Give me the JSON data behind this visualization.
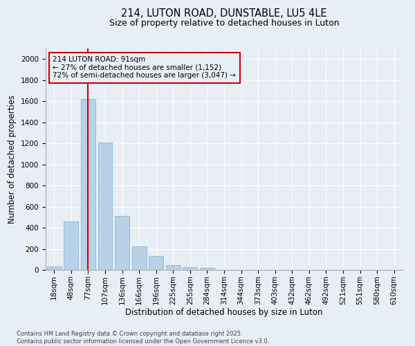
{
  "title1": "214, LUTON ROAD, DUNSTABLE, LU5 4LE",
  "title2": "Size of property relative to detached houses in Luton",
  "xlabel": "Distribution of detached houses by size in Luton",
  "ylabel": "Number of detached properties",
  "categories": [
    "18sqm",
    "48sqm",
    "77sqm",
    "107sqm",
    "136sqm",
    "166sqm",
    "196sqm",
    "225sqm",
    "255sqm",
    "284sqm",
    "314sqm",
    "344sqm",
    "373sqm",
    "403sqm",
    "432sqm",
    "462sqm",
    "492sqm",
    "521sqm",
    "551sqm",
    "580sqm",
    "610sqm"
  ],
  "values": [
    30,
    460,
    1620,
    1210,
    510,
    220,
    130,
    45,
    25,
    18,
    0,
    0,
    0,
    0,
    0,
    0,
    0,
    0,
    0,
    0,
    0
  ],
  "bar_color": "#b8d0e8",
  "bar_edge_color": "#7aafd4",
  "vline_x": 2,
  "vline_color": "#cc0000",
  "annotation_text": "214 LUTON ROAD: 91sqm\n← 27% of detached houses are smaller (1,152)\n72% of semi-detached houses are larger (3,047) →",
  "annotation_box_color": "#cc0000",
  "ylim": [
    0,
    2100
  ],
  "yticks": [
    0,
    200,
    400,
    600,
    800,
    1000,
    1200,
    1400,
    1600,
    1800,
    2000
  ],
  "background_color": "#e8eef5",
  "grid_color": "#ffffff",
  "footer_text": "Contains HM Land Registry data © Crown copyright and database right 2025.\nContains public sector information licensed under the Open Government Licence v3.0.",
  "title1_fontsize": 10.5,
  "title2_fontsize": 9,
  "axis_label_fontsize": 8.5,
  "tick_fontsize": 7.5,
  "annotation_fontsize": 7.5,
  "footer_fontsize": 6
}
